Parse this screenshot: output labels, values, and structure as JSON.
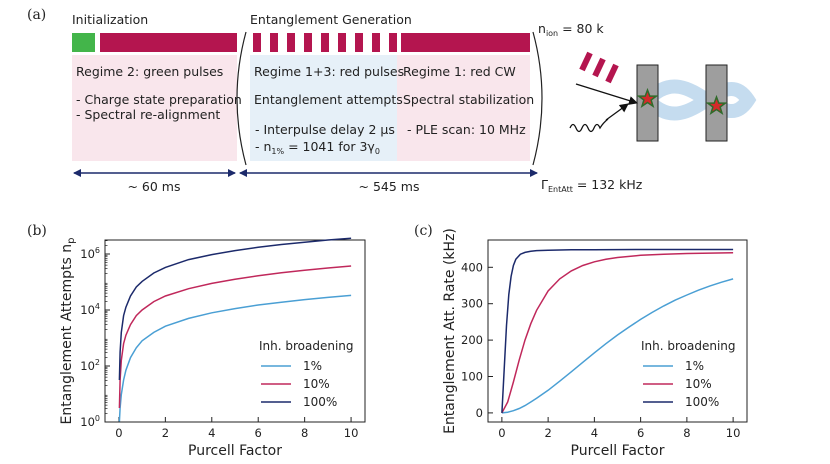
{
  "panel_a": {
    "label": "(a)",
    "init": {
      "title": "Initialization",
      "regime": "Regime 2: green pulses",
      "line1": "- Charge state preparation",
      "line2": "- Spectral re-alignment",
      "duration": "~ 60 ms"
    },
    "entanglement": {
      "title": "Entanglement Generation",
      "pulses_regime": "Regime 1+3: red pulses",
      "pulses_task": "Entanglement attempts",
      "pulses_detail1": "- Interpulse delay 2 µs",
      "pulses_detail2": "- n",
      "pulses_detail2_sub": "1%",
      "pulses_detail2_rest": " = 1041 for 3γ",
      "pulses_detail2_sub2": "0",
      "cw_regime": "Regime 1: red CW",
      "cw_task": "Spectral stabilization",
      "cw_detail": "- PLE scan: 10 MHz",
      "duration": "~ 545 ms"
    },
    "n_ion": {
      "prefix": "n",
      "sub": "ion",
      "suffix": " = 80 k"
    },
    "gamma": {
      "prefix": "Γ",
      "sub": "EntAtt",
      "suffix": " = 132 kHz"
    },
    "colors": {
      "green": "#43b54a",
      "crimson": "#b4154f",
      "pink_bg": "#f9e6ec",
      "blue_bg": "#e6f0f8",
      "navy": "#1c2a6b"
    }
  },
  "chart_data": [
    {
      "label": "(b)",
      "type": "line",
      "xlabel": "Purcell Factor",
      "ylabel": "Entanglement Attempts n",
      "ylabel_sub": "p",
      "yscale": "log",
      "xlim": [
        -0.6,
        10.6
      ],
      "ylim_log10": [
        0,
        6.5
      ],
      "xticks": [
        0,
        2,
        4,
        6,
        8,
        10
      ],
      "yticks": [
        {
          "base": "10",
          "exp": "0",
          "log": 0
        },
        {
          "base": "10",
          "exp": "2",
          "log": 2
        },
        {
          "base": "10",
          "exp": "4",
          "log": 4
        },
        {
          "base": "10",
          "exp": "6",
          "log": 6
        }
      ],
      "legend_title": "Inh. broadening",
      "legend_position": "lower-right",
      "series": [
        {
          "name": "1%",
          "color": "#4a9fd4",
          "x": [
            0.02,
            0.05,
            0.1,
            0.2,
            0.3,
            0.5,
            0.75,
            1,
            1.5,
            2,
            3,
            4,
            5,
            6,
            7,
            8,
            9,
            10
          ],
          "log10_y": [
            0.02,
            0.5,
            0.98,
            1.5,
            1.85,
            2.3,
            2.65,
            2.9,
            3.2,
            3.42,
            3.7,
            3.9,
            4.05,
            4.18,
            4.28,
            4.37,
            4.45,
            4.52
          ]
        },
        {
          "name": "10%",
          "color": "#c0285b",
          "x": [
            0.02,
            0.05,
            0.1,
            0.2,
            0.3,
            0.5,
            0.75,
            1,
            1.5,
            2,
            3,
            4,
            5,
            6,
            7,
            8,
            9,
            10
          ],
          "log10_y": [
            0.5,
            1.5,
            2.2,
            2.8,
            3.1,
            3.48,
            3.8,
            4.0,
            4.3,
            4.5,
            4.76,
            4.95,
            5.1,
            5.22,
            5.33,
            5.42,
            5.5,
            5.57
          ]
        },
        {
          "name": "100%",
          "color": "#1c2a6b",
          "x": [
            0.02,
            0.05,
            0.1,
            0.2,
            0.3,
            0.5,
            0.75,
            1,
            1.5,
            2,
            3,
            4,
            5,
            6,
            7,
            8,
            9,
            10
          ],
          "log10_y": [
            1.5,
            2.5,
            3.2,
            3.8,
            4.1,
            4.5,
            4.82,
            5.02,
            5.32,
            5.52,
            5.8,
            5.98,
            6.12,
            6.24,
            6.34,
            6.42,
            6.5,
            6.56
          ]
        }
      ]
    },
    {
      "label": "(c)",
      "type": "line",
      "xlabel": "Purcell Factor",
      "ylabel": "Entanglement Att. Rate (kHz)",
      "xlim": [
        -0.6,
        10.6
      ],
      "ylim": [
        -25,
        475
      ],
      "xticks": [
        0,
        2,
        4,
        6,
        8,
        10
      ],
      "yticks": [
        0,
        100,
        200,
        300,
        400
      ],
      "legend_title": "Inh. broadening",
      "legend_position": "lower-right",
      "series": [
        {
          "name": "1%",
          "color": "#4a9fd4",
          "x": [
            0,
            0.25,
            0.5,
            0.75,
            1,
            1.25,
            1.5,
            2,
            2.5,
            3,
            3.5,
            4,
            4.5,
            5,
            5.5,
            6,
            6.5,
            7,
            7.5,
            8,
            8.5,
            9,
            9.5,
            10
          ],
          "y": [
            0,
            2,
            6,
            12,
            20,
            30,
            40,
            62,
            87,
            113,
            139,
            165,
            190,
            214,
            236,
            257,
            276,
            294,
            310,
            324,
            337,
            349,
            359,
            368
          ]
        },
        {
          "name": "10%",
          "color": "#c0285b",
          "x": [
            0,
            0.25,
            0.5,
            0.75,
            1,
            1.25,
            1.5,
            2,
            2.5,
            3,
            3.5,
            4,
            4.5,
            5,
            6,
            7,
            8,
            9,
            10
          ],
          "y": [
            0,
            30,
            85,
            145,
            200,
            245,
            282,
            335,
            368,
            390,
            405,
            415,
            422,
            427,
            433,
            436,
            438,
            439,
            440
          ]
        },
        {
          "name": "100%",
          "color": "#1c2a6b",
          "x": [
            0,
            0.1,
            0.2,
            0.3,
            0.4,
            0.5,
            0.6,
            0.8,
            1,
            1.25,
            1.5,
            2,
            3,
            4,
            6,
            8,
            10
          ],
          "y": [
            0,
            120,
            240,
            325,
            375,
            405,
            422,
            436,
            441,
            444,
            446,
            447,
            448,
            448,
            449,
            449,
            449
          ]
        }
      ]
    }
  ]
}
